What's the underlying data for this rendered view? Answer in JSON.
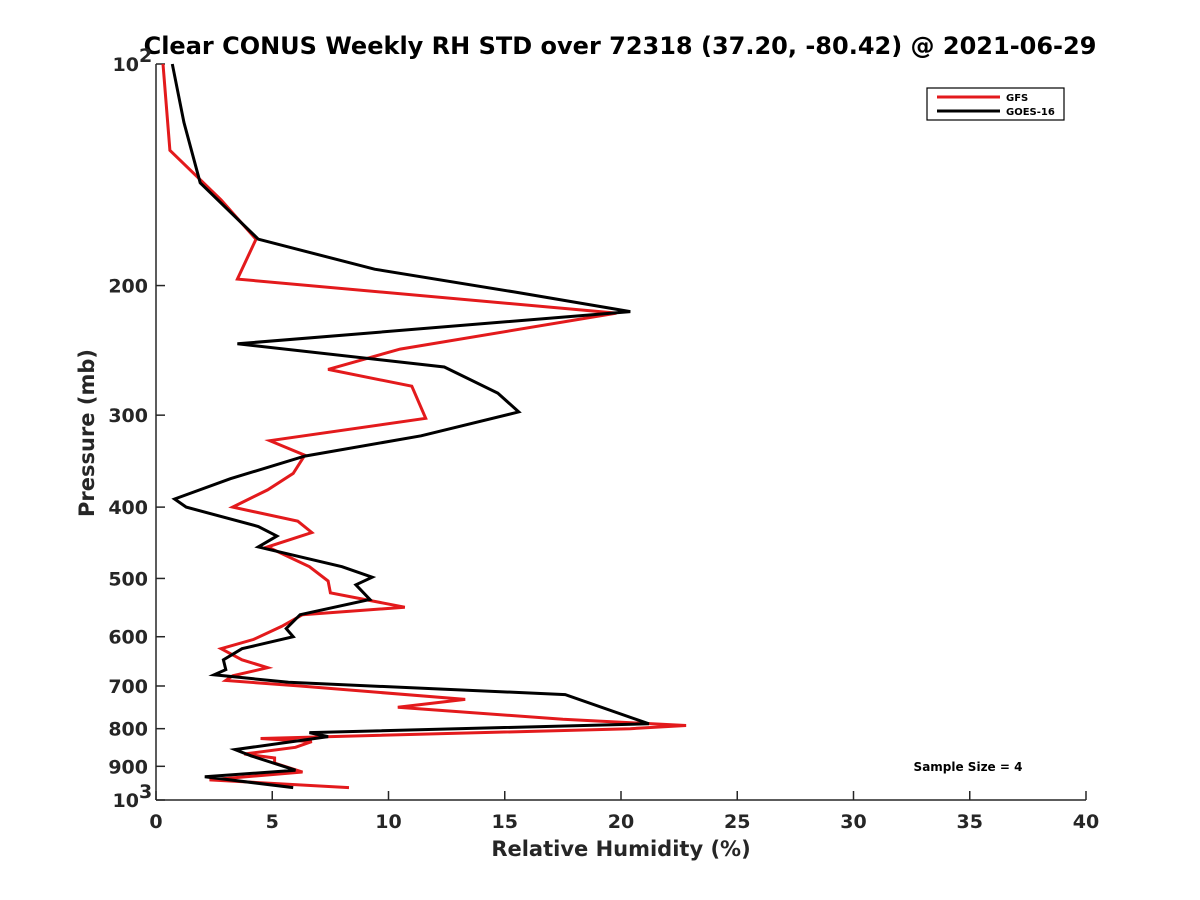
{
  "chart_data": {
    "type": "line",
    "title": "Clear CONUS Weekly RH STD over 72318 (37.20, -80.42) @ 2021-06-29",
    "xlabel": "Relative Humidity (%)",
    "ylabel": "Pressure (mb)",
    "xlim": [
      0,
      40
    ],
    "ylim": [
      100,
      1000
    ],
    "yscale": "log",
    "y_reversed": true,
    "grid": false,
    "legend_position": "top-right",
    "x_ticks": [
      "0",
      "5",
      "10",
      "15",
      "20",
      "25",
      "30",
      "35",
      "40"
    ],
    "y_ticks": [
      {
        "value": 100,
        "base": "10",
        "exp": "2"
      },
      {
        "value": 200,
        "label": "200"
      },
      {
        "value": 300,
        "label": "300"
      },
      {
        "value": 400,
        "label": "400"
      },
      {
        "value": 500,
        "label": "500"
      },
      {
        "value": 600,
        "label": "600"
      },
      {
        "value": 700,
        "label": "700"
      },
      {
        "value": 800,
        "label": "800"
      },
      {
        "value": 900,
        "label": "900"
      },
      {
        "value": 1000,
        "base": "10",
        "exp": "3"
      }
    ],
    "annotation": "Sample Size = 4",
    "series": [
      {
        "name": "GFS",
        "color": "#e31a1c",
        "points": [
          [
            0.3,
            100
          ],
          [
            0.6,
            131
          ],
          [
            2.8,
            153
          ],
          [
            4.3,
            173
          ],
          [
            3.5,
            196
          ],
          [
            19.8,
            218
          ],
          [
            10.5,
            244
          ],
          [
            7.4,
            260
          ],
          [
            11.0,
            274
          ],
          [
            11.6,
            303
          ],
          [
            4.9,
            325
          ],
          [
            6.4,
            340
          ],
          [
            5.9,
            360
          ],
          [
            4.8,
            379
          ],
          [
            3.3,
            400
          ],
          [
            6.1,
            418
          ],
          [
            6.7,
            433
          ],
          [
            4.8,
            453
          ],
          [
            6.6,
            482
          ],
          [
            7.4,
            504
          ],
          [
            7.5,
            523
          ],
          [
            10.7,
            547
          ],
          [
            6.3,
            560
          ],
          [
            5.4,
            581
          ],
          [
            4.2,
            605
          ],
          [
            2.8,
            623
          ],
          [
            3.7,
            645
          ],
          [
            4.8,
            661
          ],
          [
            3.3,
            678
          ],
          [
            3.0,
            688
          ],
          [
            6.2,
            700
          ],
          [
            13.3,
            730
          ],
          [
            10.4,
            748
          ],
          [
            17.5,
            777
          ],
          [
            22.8,
            792
          ],
          [
            20.4,
            800
          ],
          [
            4.5,
            825
          ],
          [
            6.7,
            833
          ],
          [
            6.0,
            848
          ],
          [
            3.8,
            866
          ],
          [
            5.1,
            877
          ],
          [
            5.1,
            891
          ],
          [
            6.3,
            916
          ],
          [
            2.3,
            939
          ],
          [
            8.3,
            962
          ]
        ]
      },
      {
        "name": "GOES-16",
        "color": "#000000",
        "points": [
          [
            0.7,
            100
          ],
          [
            1.2,
            120
          ],
          [
            1.9,
            145
          ],
          [
            4.4,
            173
          ],
          [
            9.4,
            190
          ],
          [
            15.4,
            204
          ],
          [
            20.4,
            217
          ],
          [
            3.5,
            240
          ],
          [
            12.4,
            258
          ],
          [
            14.7,
            280
          ],
          [
            15.6,
            297
          ],
          [
            11.4,
            320
          ],
          [
            6.4,
            341
          ],
          [
            3.2,
            366
          ],
          [
            0.8,
            390
          ],
          [
            1.3,
            400
          ],
          [
            4.4,
            425
          ],
          [
            5.2,
            438
          ],
          [
            4.4,
            453
          ],
          [
            8.0,
            482
          ],
          [
            9.3,
            498
          ],
          [
            8.6,
            510
          ],
          [
            9.2,
            534
          ],
          [
            6.2,
            560
          ],
          [
            5.6,
            585
          ],
          [
            5.9,
            600
          ],
          [
            3.7,
            623
          ],
          [
            2.9,
            645
          ],
          [
            3.0,
            665
          ],
          [
            2.5,
            676
          ],
          [
            5.7,
            692
          ],
          [
            17.6,
            719
          ],
          [
            21.2,
            788
          ],
          [
            6.6,
            810
          ],
          [
            7.4,
            820
          ],
          [
            3.4,
            854
          ],
          [
            4.1,
            871
          ],
          [
            6.0,
            911
          ],
          [
            2.1,
            930
          ],
          [
            5.9,
            962
          ]
        ]
      }
    ]
  }
}
